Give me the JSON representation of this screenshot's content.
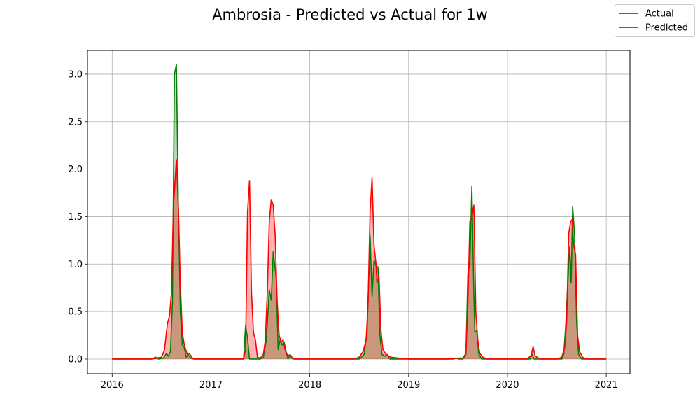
{
  "chart_data": {
    "type": "line",
    "title": "Ambrosia - Predicted vs Actual for 1w",
    "xlabel": "",
    "ylabel": "",
    "xlim": [
      2015.75,
      2021.24
    ],
    "ylim": [
      -0.155,
      3.25
    ],
    "x_ticks": [
      2016,
      2017,
      2018,
      2019,
      2020,
      2021
    ],
    "x_tick_labels": [
      "2016",
      "2017",
      "2018",
      "2019",
      "2020",
      "2021"
    ],
    "y_ticks": [
      0.0,
      0.5,
      1.0,
      1.5,
      2.0,
      2.5,
      3.0
    ],
    "y_tick_labels": [
      "0.0",
      "0.5",
      "1.0",
      "1.5",
      "2.0",
      "2.5",
      "3.0"
    ],
    "grid": true,
    "legend_position": "top-right",
    "series": [
      {
        "name": "Actual",
        "color": "#008000",
        "fill": "#008000",
        "points": [
          [
            2016.0,
            0
          ],
          [
            2016.4,
            0
          ],
          [
            2016.44,
            0.02
          ],
          [
            2016.47,
            0
          ],
          [
            2016.52,
            0.01
          ],
          [
            2016.55,
            0.06
          ],
          [
            2016.57,
            0.03
          ],
          [
            2016.59,
            0.08
          ],
          [
            2016.61,
            0.6
          ],
          [
            2016.63,
            3.0
          ],
          [
            2016.65,
            3.1
          ],
          [
            2016.67,
            1.6
          ],
          [
            2016.69,
            0.5
          ],
          [
            2016.71,
            0.15
          ],
          [
            2016.73,
            0.12
          ],
          [
            2016.75,
            0.02
          ],
          [
            2016.78,
            0.06
          ],
          [
            2016.82,
            0
          ],
          [
            2017.0,
            0
          ],
          [
            2017.33,
            0
          ],
          [
            2017.35,
            0.35
          ],
          [
            2017.37,
            0.22
          ],
          [
            2017.39,
            0
          ],
          [
            2017.5,
            0
          ],
          [
            2017.53,
            0.02
          ],
          [
            2017.56,
            0.2
          ],
          [
            2017.59,
            0.73
          ],
          [
            2017.61,
            0.62
          ],
          [
            2017.63,
            1.13
          ],
          [
            2017.66,
            0.85
          ],
          [
            2017.68,
            0.1
          ],
          [
            2017.7,
            0.2
          ],
          [
            2017.72,
            0.15
          ],
          [
            2017.74,
            0.18
          ],
          [
            2017.76,
            0.08
          ],
          [
            2017.78,
            0
          ],
          [
            2017.8,
            0.05
          ],
          [
            2017.83,
            0
          ],
          [
            2018.0,
            0
          ],
          [
            2018.5,
            0
          ],
          [
            2018.55,
            0.05
          ],
          [
            2018.58,
            0.3
          ],
          [
            2018.61,
            1.3
          ],
          [
            2018.63,
            0.66
          ],
          [
            2018.65,
            1.04
          ],
          [
            2018.67,
            0.98
          ],
          [
            2018.69,
            0.97
          ],
          [
            2018.71,
            0.25
          ],
          [
            2018.73,
            0.05
          ],
          [
            2018.76,
            0.03
          ],
          [
            2018.78,
            0.05
          ],
          [
            2018.81,
            0
          ],
          [
            2019.0,
            0
          ],
          [
            2019.45,
            0
          ],
          [
            2019.48,
            0.01
          ],
          [
            2019.51,
            0
          ],
          [
            2019.55,
            0
          ],
          [
            2019.58,
            0.05
          ],
          [
            2019.6,
            0.9
          ],
          [
            2019.62,
            1.0
          ],
          [
            2019.64,
            1.82
          ],
          [
            2019.66,
            0.7
          ],
          [
            2019.67,
            0.28
          ],
          [
            2019.69,
            0.3
          ],
          [
            2019.71,
            0.05
          ],
          [
            2019.74,
            0
          ],
          [
            2020.0,
            0
          ],
          [
            2020.23,
            0
          ],
          [
            2020.25,
            0.05
          ],
          [
            2020.27,
            0
          ],
          [
            2020.32,
            0
          ],
          [
            2020.55,
            0
          ],
          [
            2020.57,
            0.05
          ],
          [
            2020.59,
            0.35
          ],
          [
            2020.61,
            0.78
          ],
          [
            2020.63,
            1.18
          ],
          [
            2020.645,
            0.8
          ],
          [
            2020.66,
            1.61
          ],
          [
            2020.68,
            1.3
          ],
          [
            2020.7,
            0.4
          ],
          [
            2020.72,
            0.05
          ],
          [
            2020.75,
            0
          ],
          [
            2021.0,
            0
          ]
        ]
      },
      {
        "name": "Predicted",
        "color": "#ff0000",
        "fill": "#ff0000",
        "points": [
          [
            2016.0,
            0
          ],
          [
            2016.4,
            0
          ],
          [
            2016.45,
            0.01
          ],
          [
            2016.5,
            0.02
          ],
          [
            2016.53,
            0.1
          ],
          [
            2016.56,
            0.38
          ],
          [
            2016.58,
            0.45
          ],
          [
            2016.6,
            0.7
          ],
          [
            2016.62,
            1.6
          ],
          [
            2016.65,
            2.1
          ],
          [
            2016.67,
            1.6
          ],
          [
            2016.69,
            0.8
          ],
          [
            2016.71,
            0.28
          ],
          [
            2016.73,
            0.15
          ],
          [
            2016.76,
            0.05
          ],
          [
            2016.8,
            0.01
          ],
          [
            2016.85,
            0
          ],
          [
            2017.0,
            0
          ],
          [
            2017.33,
            0
          ],
          [
            2017.35,
            0.1
          ],
          [
            2017.37,
            1.55
          ],
          [
            2017.39,
            1.88
          ],
          [
            2017.41,
            0.7
          ],
          [
            2017.43,
            0.28
          ],
          [
            2017.45,
            0.2
          ],
          [
            2017.47,
            0.02
          ],
          [
            2017.5,
            0.01
          ],
          [
            2017.53,
            0.05
          ],
          [
            2017.55,
            0.2
          ],
          [
            2017.57,
            0.7
          ],
          [
            2017.59,
            1.45
          ],
          [
            2017.61,
            1.68
          ],
          [
            2017.63,
            1.62
          ],
          [
            2017.65,
            1.3
          ],
          [
            2017.67,
            0.6
          ],
          [
            2017.69,
            0.25
          ],
          [
            2017.71,
            0.18
          ],
          [
            2017.73,
            0.2
          ],
          [
            2017.75,
            0.1
          ],
          [
            2017.77,
            0.05
          ],
          [
            2017.8,
            0.03
          ],
          [
            2017.85,
            0
          ],
          [
            2018.0,
            0
          ],
          [
            2018.45,
            0
          ],
          [
            2018.5,
            0.02
          ],
          [
            2018.54,
            0.08
          ],
          [
            2018.57,
            0.2
          ],
          [
            2018.59,
            0.6
          ],
          [
            2018.61,
            1.55
          ],
          [
            2018.63,
            1.91
          ],
          [
            2018.65,
            1.2
          ],
          [
            2018.67,
            1.0
          ],
          [
            2018.68,
            0.8
          ],
          [
            2018.7,
            0.88
          ],
          [
            2018.72,
            0.3
          ],
          [
            2018.74,
            0.1
          ],
          [
            2018.77,
            0.05
          ],
          [
            2018.82,
            0.02
          ],
          [
            2018.9,
            0.01
          ],
          [
            2019.0,
            0
          ],
          [
            2019.4,
            0
          ],
          [
            2019.5,
            0.01
          ],
          [
            2019.55,
            0.01
          ],
          [
            2019.58,
            0.06
          ],
          [
            2019.6,
            0.6
          ],
          [
            2019.62,
            1.45
          ],
          [
            2019.64,
            1.48
          ],
          [
            2019.66,
            1.62
          ],
          [
            2019.68,
            0.5
          ],
          [
            2019.7,
            0.2
          ],
          [
            2019.72,
            0.06
          ],
          [
            2019.75,
            0.02
          ],
          [
            2019.8,
            0
          ],
          [
            2020.0,
            0
          ],
          [
            2020.2,
            0
          ],
          [
            2020.24,
            0.04
          ],
          [
            2020.26,
            0.13
          ],
          [
            2020.28,
            0.03
          ],
          [
            2020.3,
            0.02
          ],
          [
            2020.33,
            0
          ],
          [
            2020.5,
            0
          ],
          [
            2020.55,
            0.02
          ],
          [
            2020.58,
            0.12
          ],
          [
            2020.6,
            0.4
          ],
          [
            2020.62,
            1.32
          ],
          [
            2020.64,
            1.45
          ],
          [
            2020.655,
            1.47
          ],
          [
            2020.67,
            1.2
          ],
          [
            2020.69,
            1.1
          ],
          [
            2020.71,
            0.25
          ],
          [
            2020.73,
            0.08
          ],
          [
            2020.76,
            0.02
          ],
          [
            2020.8,
            0
          ],
          [
            2021.0,
            0
          ]
        ]
      }
    ]
  }
}
